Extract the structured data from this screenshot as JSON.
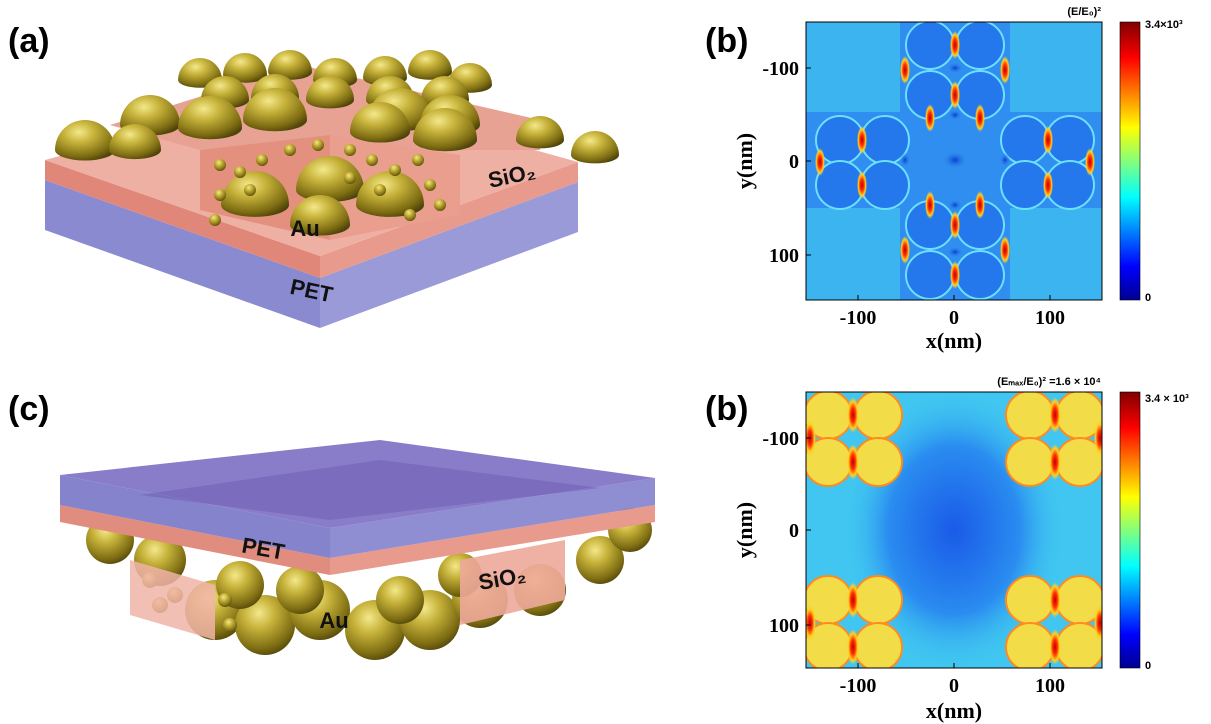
{
  "panels": [
    {
      "label": "(a)",
      "texts": [
        "Au",
        "SiO₂",
        "PET"
      ]
    },
    {
      "label": "(b)",
      "colorbar_title": "(E/E₀)²",
      "colorbar_max": "3.4×10³",
      "colorbar_min": "0",
      "x_label": "x(nm)",
      "y_label": "y(nm)",
      "x_ticks": [
        "-100",
        "0",
        "100"
      ],
      "y_ticks": [
        "-100",
        "0",
        "100"
      ]
    },
    {
      "label": "(c)",
      "texts": [
        "PET",
        "SiO₂",
        "Au"
      ]
    },
    {
      "label": "(b)",
      "colorbar_title": "(Eₘₐₓ/E₀)² =1.6 × 10⁴",
      "colorbar_max": "3.4 × 10³",
      "colorbar_min": "0",
      "x_label": "x(nm)",
      "y_label": "y(nm)",
      "x_ticks": [
        "-100",
        "0",
        "100"
      ],
      "y_ticks": [
        "-100",
        "0",
        "100"
      ]
    }
  ]
}
